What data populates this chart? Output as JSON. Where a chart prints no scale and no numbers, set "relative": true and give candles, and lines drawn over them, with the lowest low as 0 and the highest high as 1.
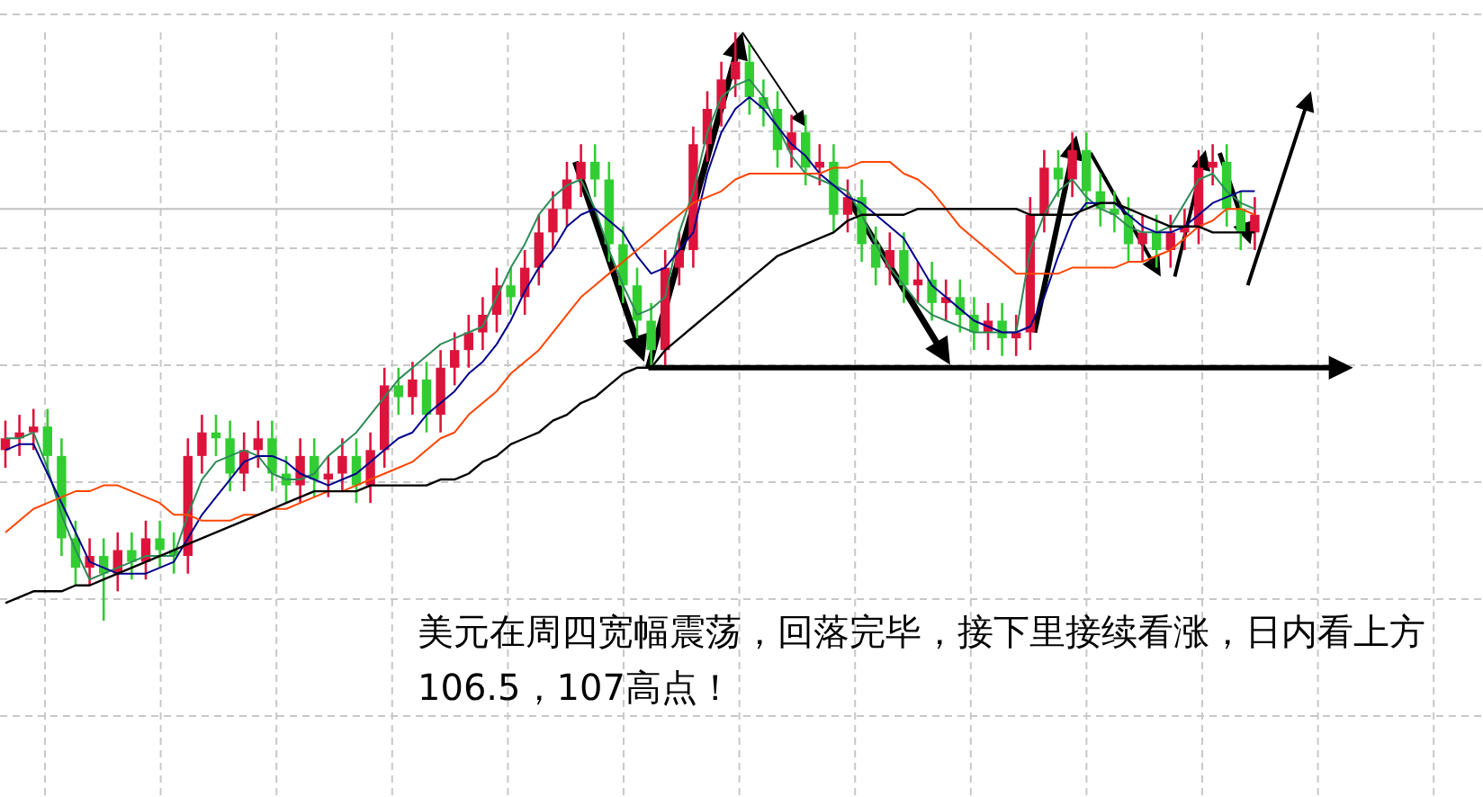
{
  "chart_data": {
    "type": "candlestick",
    "relative": true,
    "grid": true,
    "categories": [
      null,
      null,
      null,
      null,
      null,
      null,
      null,
      null,
      null,
      null,
      null,
      null,
      null,
      null,
      null,
      null,
      null,
      null,
      null,
      null,
      null,
      null,
      null,
      null,
      null,
      null,
      null,
      null,
      null,
      null,
      null,
      null,
      null,
      null,
      null,
      null,
      null,
      null,
      null,
      null,
      null,
      null,
      null,
      null,
      null,
      null,
      null,
      null,
      null,
      null,
      null,
      null,
      null,
      null,
      null,
      null,
      null,
      null,
      null,
      null,
      null,
      null,
      null,
      null,
      null,
      null,
      null,
      null,
      null,
      null,
      null,
      null,
      null,
      null,
      null,
      null,
      null,
      null,
      null,
      null,
      null,
      null,
      null,
      null,
      null,
      null,
      null,
      null,
      null,
      null
    ],
    "colors": [
      "#dc143c",
      "#dc143c",
      "#dc143c",
      "#32cd32",
      "#32cd32",
      "#32cd32",
      "#dc143c",
      "#32cd32",
      "#dc143c",
      "#32cd32",
      "#dc143c",
      "#32cd32",
      "#32cd32",
      "#dc143c",
      "#dc143c",
      "#32cd32",
      "#32cd32",
      "#dc143c",
      "#dc143c",
      "#32cd32",
      "#32cd32",
      "#dc143c",
      "#32cd32",
      "#dc143c",
      "#dc143c",
      "#32cd32",
      "#dc143c",
      "#dc143c",
      "#32cd32",
      "#dc143c",
      "#32cd32",
      "#dc143c",
      "#dc143c",
      "#dc143c",
      "#dc143c",
      "#dc143c",
      "#32cd32",
      "#dc143c",
      "#dc143c",
      "#dc143c",
      "#dc143c",
      "#dc143c",
      "#32cd32",
      "#32cd32",
      "#32cd32",
      "#32cd32",
      "#32cd32",
      "#dc143c",
      "#dc143c",
      "#dc143c",
      "#dc143c",
      "#dc143c",
      "#dc143c",
      "#32cd32",
      "#32cd32",
      "#32cd32",
      "#dc143c",
      "#32cd32",
      "#dc143c",
      "#32cd32",
      "#dc143c",
      "#32cd32",
      "#32cd32",
      "#dc143c",
      "#32cd32",
      "#dc143c",
      "#32cd32",
      "#dc143c",
      "#32cd32",
      "#32cd32",
      "#dc143c",
      "#32cd32",
      "#dc143c",
      "#dc143c",
      "#dc143c",
      "#32cd32",
      "#dc143c",
      "#32cd32",
      "#32cd32",
      "#32cd32",
      "#32cd32",
      "#dc143c",
      "#32cd32",
      "#dc143c",
      "#dc143c",
      "#dc143c",
      "#dc143c",
      "#32cd32",
      "#32cd32",
      "#dc143c"
    ],
    "ohlc": [
      [
        0.29,
        0.34,
        0.26,
        0.31
      ],
      [
        0.31,
        0.35,
        0.28,
        0.32
      ],
      [
        0.32,
        0.36,
        0.29,
        0.33
      ],
      [
        0.33,
        0.36,
        0.25,
        0.28
      ],
      [
        0.28,
        0.31,
        0.11,
        0.14
      ],
      [
        0.14,
        0.17,
        0.06,
        0.09
      ],
      [
        0.09,
        0.14,
        0.06,
        0.11
      ],
      [
        0.11,
        0.14,
        0,
        0.08
      ],
      [
        0.08,
        0.15,
        0.05,
        0.12
      ],
      [
        0.12,
        0.15,
        0.07,
        0.1
      ],
      [
        0.1,
        0.17,
        0.07,
        0.14
      ],
      [
        0.14,
        0.17,
        0.09,
        0.12
      ],
      [
        0.12,
        0.15,
        0.08,
        0.11
      ],
      [
        0.11,
        0.31,
        0.08,
        0.28
      ],
      [
        0.28,
        0.35,
        0.25,
        0.32
      ],
      [
        0.32,
        0.35,
        0.28,
        0.31
      ],
      [
        0.31,
        0.34,
        0.22,
        0.25
      ],
      [
        0.25,
        0.32,
        0.22,
        0.29
      ],
      [
        0.29,
        0.34,
        0.26,
        0.31
      ],
      [
        0.31,
        0.34,
        0.22,
        0.25
      ],
      [
        0.25,
        0.28,
        0.2,
        0.23
      ],
      [
        0.23,
        0.31,
        0.2,
        0.28
      ],
      [
        0.28,
        0.31,
        0.21,
        0.24
      ],
      [
        0.24,
        0.28,
        0.21,
        0.25
      ],
      [
        0.25,
        0.31,
        0.22,
        0.28
      ],
      [
        0.28,
        0.31,
        0.2,
        0.23
      ],
      [
        0.23,
        0.32,
        0.2,
        0.29
      ],
      [
        0.29,
        0.43,
        0.26,
        0.4
      ],
      [
        0.4,
        0.43,
        0.35,
        0.38
      ],
      [
        0.38,
        0.44,
        0.35,
        0.41
      ],
      [
        0.41,
        0.44,
        0.32,
        0.35
      ],
      [
        0.35,
        0.46,
        0.32,
        0.43
      ],
      [
        0.43,
        0.49,
        0.4,
        0.46
      ],
      [
        0.46,
        0.52,
        0.43,
        0.49
      ],
      [
        0.49,
        0.55,
        0.46,
        0.52
      ],
      [
        0.52,
        0.6,
        0.49,
        0.57
      ],
      [
        0.57,
        0.6,
        0.52,
        0.55
      ],
      [
        0.55,
        0.63,
        0.52,
        0.6
      ],
      [
        0.6,
        0.69,
        0.57,
        0.66
      ],
      [
        0.66,
        0.73,
        0.63,
        0.7
      ],
      [
        0.7,
        0.78,
        0.67,
        0.75
      ],
      [
        0.75,
        0.81,
        0.72,
        0.78
      ],
      [
        0.78,
        0.81,
        0.72,
        0.75
      ],
      [
        0.75,
        0.78,
        0.61,
        0.64
      ],
      [
        0.64,
        0.67,
        0.54,
        0.57
      ],
      [
        0.57,
        0.6,
        0.48,
        0.51
      ],
      [
        0.51,
        0.54,
        0.43,
        0.46
      ],
      [
        0.46,
        0.63,
        0.43,
        0.6
      ],
      [
        0.6,
        0.66,
        0.57,
        0.63
      ],
      [
        0.63,
        0.84,
        0.6,
        0.81
      ],
      [
        0.81,
        0.9,
        0.78,
        0.87
      ],
      [
        0.87,
        0.95,
        0.84,
        0.92
      ],
      [
        0.92,
        1,
        0.89,
        0.95
      ],
      [
        0.95,
        0.98,
        0.86,
        0.89
      ],
      [
        0.89,
        0.92,
        0.84,
        0.87
      ],
      [
        0.87,
        0.9,
        0.77,
        0.8
      ],
      [
        0.8,
        0.86,
        0.77,
        0.83
      ],
      [
        0.83,
        0.86,
        0.74,
        0.77
      ],
      [
        0.77,
        0.81,
        0.74,
        0.78
      ],
      [
        0.78,
        0.81,
        0.66,
        0.69
      ],
      [
        0.69,
        0.75,
        0.66,
        0.72
      ],
      [
        0.72,
        0.75,
        0.61,
        0.64
      ],
      [
        0.64,
        0.67,
        0.57,
        0.6
      ],
      [
        0.6,
        0.66,
        0.57,
        0.63
      ],
      [
        0.63,
        0.66,
        0.54,
        0.57
      ],
      [
        0.57,
        0.61,
        0.54,
        0.58
      ],
      [
        0.58,
        0.61,
        0.51,
        0.54
      ],
      [
        0.54,
        0.58,
        0.51,
        0.55
      ],
      [
        0.55,
        0.58,
        0.49,
        0.52
      ],
      [
        0.52,
        0.55,
        0.46,
        0.49
      ],
      [
        0.49,
        0.54,
        0.46,
        0.51
      ],
      [
        0.51,
        0.54,
        0.45,
        0.48
      ],
      [
        0.48,
        0.52,
        0.45,
        0.49
      ],
      [
        0.49,
        0.72,
        0.46,
        0.69
      ],
      [
        0.69,
        0.8,
        0.66,
        0.77
      ],
      [
        0.77,
        0.8,
        0.72,
        0.75
      ],
      [
        0.75,
        0.83,
        0.72,
        0.8
      ],
      [
        0.8,
        0.83,
        0.7,
        0.73
      ],
      [
        0.73,
        0.76,
        0.67,
        0.7
      ],
      [
        0.7,
        0.73,
        0.66,
        0.69
      ],
      [
        0.69,
        0.72,
        0.61,
        0.64
      ],
      [
        0.64,
        0.69,
        0.61,
        0.66
      ],
      [
        0.66,
        0.69,
        0.6,
        0.63
      ],
      [
        0.63,
        0.69,
        0.6,
        0.66
      ],
      [
        0.66,
        0.7,
        0.63,
        0.67
      ],
      [
        0.67,
        0.8,
        0.64,
        0.77
      ],
      [
        0.77,
        0.81,
        0.74,
        0.78
      ],
      [
        0.78,
        0.81,
        0.67,
        0.7
      ],
      [
        0.7,
        0.73,
        0.63,
        0.66
      ],
      [
        0.66,
        0.72,
        0.63,
        0.69
      ]
    ],
    "series": [
      {
        "type": "line",
        "color": "#2e8b57",
        "values": [
          0.31,
          0.31,
          0.32,
          0.26,
          0.18,
          0.12,
          0.07,
          0.08,
          0.09,
          0.1,
          0.11,
          0.11,
          0.11,
          0.18,
          0.24,
          0.27,
          0.28,
          0.29,
          0.28,
          0.25,
          0.24,
          0.24,
          0.25,
          0.28,
          0.3,
          0.32,
          0.35,
          0.38,
          0.41,
          0.43,
          0.45,
          0.47,
          0.48,
          0.49,
          0.5,
          0.55,
          0.6,
          0.64,
          0.69,
          0.72,
          0.74,
          0.75,
          0.7,
          0.63,
          0.57,
          0.52,
          0.53,
          0.55,
          0.66,
          0.73,
          0.83,
          0.89,
          0.91,
          0.92,
          0.89,
          0.84,
          0.79,
          0.76,
          0.75,
          0.74,
          0.73,
          0.69,
          0.64,
          0.6,
          0.57,
          0.54,
          0.52,
          0.51,
          0.5,
          0.49,
          0.49,
          0.49,
          0.49,
          0.63,
          0.69,
          0.73,
          0.75,
          0.72,
          0.7,
          0.69,
          0.67,
          0.66,
          0.66,
          0.67,
          0.71,
          0.75,
          0.76,
          0.73,
          0.71,
          0.7
        ]
      },
      {
        "type": "line",
        "color": "#00008b",
        "values": [
          0.29,
          0.3,
          0.3,
          0.25,
          0.2,
          0.15,
          0.1,
          0.09,
          0.08,
          0.08,
          0.08,
          0.09,
          0.1,
          0.14,
          0.18,
          0.21,
          0.24,
          0.27,
          0.28,
          0.28,
          0.27,
          0.25,
          0.24,
          0.23,
          0.24,
          0.25,
          0.27,
          0.29,
          0.31,
          0.32,
          0.35,
          0.37,
          0.39,
          0.42,
          0.44,
          0.47,
          0.51,
          0.56,
          0.6,
          0.63,
          0.67,
          0.69,
          0.7,
          0.68,
          0.66,
          0.62,
          0.59,
          0.6,
          0.63,
          0.66,
          0.76,
          0.83,
          0.87,
          0.89,
          0.87,
          0.84,
          0.81,
          0.79,
          0.76,
          0.74,
          0.72,
          0.71,
          0.69,
          0.67,
          0.65,
          0.61,
          0.57,
          0.55,
          0.53,
          0.51,
          0.5,
          0.49,
          0.49,
          0.5,
          0.55,
          0.62,
          0.68,
          0.71,
          0.71,
          0.71,
          0.69,
          0.67,
          0.66,
          0.66,
          0.67,
          0.69,
          0.71,
          0.72,
          0.73,
          0.73
        ]
      },
      {
        "type": "line",
        "color": "#ff4500",
        "values": [
          0.15,
          0.17,
          0.19,
          0.2,
          0.21,
          0.22,
          0.22,
          0.23,
          0.23,
          0.22,
          0.21,
          0.2,
          0.18,
          0.18,
          0.17,
          0.17,
          0.17,
          0.18,
          0.18,
          0.19,
          0.19,
          0.2,
          0.21,
          0.22,
          0.22,
          0.23,
          0.24,
          0.25,
          0.26,
          0.27,
          0.29,
          0.31,
          0.32,
          0.35,
          0.37,
          0.39,
          0.42,
          0.44,
          0.46,
          0.49,
          0.52,
          0.55,
          0.57,
          0.59,
          0.61,
          0.63,
          0.65,
          0.67,
          0.69,
          0.71,
          0.72,
          0.73,
          0.75,
          0.76,
          0.76,
          0.76,
          0.76,
          0.76,
          0.76,
          0.77,
          0.77,
          0.78,
          0.78,
          0.78,
          0.76,
          0.75,
          0.73,
          0.7,
          0.67,
          0.65,
          0.63,
          0.61,
          0.59,
          0.59,
          0.59,
          0.59,
          0.6,
          0.6,
          0.6,
          0.6,
          0.61,
          0.61,
          0.62,
          0.63,
          0.65,
          0.67,
          0.68,
          0.7,
          0.7,
          0.69
        ]
      },
      {
        "type": "line",
        "color": "#000000",
        "values": [
          0.03,
          0.04,
          0.05,
          0.05,
          0.05,
          0.06,
          0.06,
          0.07,
          0.08,
          0.09,
          0.1,
          0.11,
          0.12,
          0.13,
          0.14,
          0.15,
          0.16,
          0.17,
          0.18,
          0.19,
          0.2,
          0.21,
          0.22,
          0.22,
          0.22,
          0.22,
          0.23,
          0.23,
          0.23,
          0.23,
          0.23,
          0.24,
          0.24,
          0.25,
          0.27,
          0.28,
          0.3,
          0.31,
          0.32,
          0.34,
          0.35,
          0.37,
          0.38,
          0.4,
          0.42,
          0.43,
          0.43,
          0.46,
          0.48,
          0.5,
          0.52,
          0.54,
          0.56,
          0.58,
          0.6,
          0.62,
          0.63,
          0.64,
          0.65,
          0.66,
          0.68,
          0.69,
          0.69,
          0.69,
          0.69,
          0.7,
          0.7,
          0.7,
          0.7,
          0.7,
          0.7,
          0.7,
          0.7,
          0.69,
          0.69,
          0.69,
          0.69,
          0.7,
          0.71,
          0.71,
          0.7,
          0.69,
          0.68,
          0.67,
          0.67,
          0.67,
          0.66,
          0.66,
          0.66,
          0.66
        ]
      }
    ],
    "ref_lines": [
      {
        "axis": "y",
        "value": 0.7,
        "color": "#c0c0c0"
      },
      {
        "axis": "y",
        "value": 0.43,
        "color": "#000000"
      }
    ],
    "annotations": [
      "美元在周四宽幅震荡，回落完毕，接下里接续看涨，日内看上方106.5，107高点！"
    ]
  }
}
